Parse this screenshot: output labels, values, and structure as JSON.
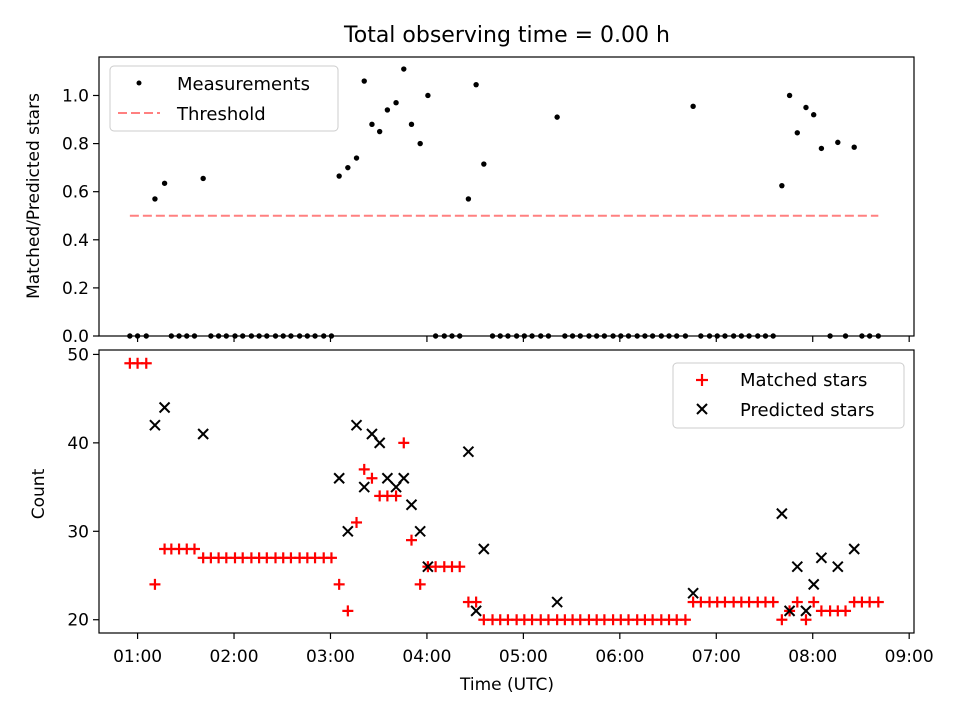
{
  "chart_data": [
    {
      "type": "scatter",
      "title": "Total observing time = 0.00 h",
      "xlabel": "",
      "ylabel": "Matched/Predicted stars",
      "xlim": [
        0.6,
        9.05
      ],
      "ylim": [
        0,
        1.16
      ],
      "yticks": [
        0.0,
        0.2,
        0.4,
        0.6,
        0.8,
        1.0
      ],
      "ytick_labels": [
        "0.0",
        "0.2",
        "0.4",
        "0.6",
        "0.8",
        "1.0"
      ],
      "xticks": [
        1,
        2,
        3,
        4,
        5,
        6,
        7,
        8,
        9
      ],
      "grid": false,
      "legend_position": "upper-left",
      "series": [
        {
          "name": "Measurements",
          "color": "#000000",
          "marker": "dot",
          "points": [
            [
              0.92,
              0
            ],
            [
              1.0,
              0
            ],
            [
              1.09,
              0
            ],
            [
              1.18,
              0.57
            ],
            [
              1.28,
              0.635
            ],
            [
              1.35,
              0
            ],
            [
              1.43,
              0
            ],
            [
              1.51,
              0
            ],
            [
              1.59,
              0
            ],
            [
              1.68,
              0.655
            ],
            [
              1.76,
              0
            ],
            [
              1.84,
              0
            ],
            [
              1.92,
              0
            ],
            [
              2.01,
              0
            ],
            [
              2.09,
              0
            ],
            [
              2.18,
              0
            ],
            [
              2.26,
              0
            ],
            [
              2.34,
              0
            ],
            [
              2.43,
              0
            ],
            [
              2.51,
              0
            ],
            [
              2.59,
              0
            ],
            [
              2.68,
              0
            ],
            [
              2.76,
              0
            ],
            [
              2.84,
              0
            ],
            [
              2.93,
              0
            ],
            [
              3.01,
              0
            ],
            [
              3.09,
              0.665
            ],
            [
              3.18,
              0.7
            ],
            [
              3.27,
              0.74
            ],
            [
              3.35,
              1.06
            ],
            [
              3.43,
              0.88
            ],
            [
              3.51,
              0.85
            ],
            [
              3.59,
              0.94
            ],
            [
              3.68,
              0.97
            ],
            [
              3.76,
              1.11
            ],
            [
              3.84,
              0.88
            ],
            [
              3.93,
              0.8
            ],
            [
              4.01,
              1.0
            ],
            [
              4.09,
              0
            ],
            [
              4.18,
              0
            ],
            [
              4.26,
              0
            ],
            [
              4.34,
              0
            ],
            [
              4.43,
              0.57
            ],
            [
              4.51,
              1.045
            ],
            [
              4.59,
              0.715
            ],
            [
              4.68,
              0
            ],
            [
              4.76,
              0
            ],
            [
              4.84,
              0
            ],
            [
              4.93,
              0
            ],
            [
              5.01,
              0
            ],
            [
              5.09,
              0
            ],
            [
              5.18,
              0
            ],
            [
              5.26,
              0
            ],
            [
              5.35,
              0.91
            ],
            [
              5.43,
              0
            ],
            [
              5.51,
              0
            ],
            [
              5.59,
              0
            ],
            [
              5.68,
              0
            ],
            [
              5.76,
              0
            ],
            [
              5.84,
              0
            ],
            [
              5.93,
              0
            ],
            [
              6.01,
              0
            ],
            [
              6.09,
              0
            ],
            [
              6.18,
              0
            ],
            [
              6.26,
              0
            ],
            [
              6.34,
              0
            ],
            [
              6.43,
              0
            ],
            [
              6.51,
              0
            ],
            [
              6.59,
              0
            ],
            [
              6.68,
              0
            ],
            [
              6.76,
              0.955
            ],
            [
              6.84,
              0
            ],
            [
              6.93,
              0
            ],
            [
              7.01,
              0
            ],
            [
              7.09,
              0
            ],
            [
              7.18,
              0
            ],
            [
              7.26,
              0
            ],
            [
              7.34,
              0
            ],
            [
              7.43,
              0
            ],
            [
              7.51,
              0
            ],
            [
              7.59,
              0
            ],
            [
              7.68,
              0.625
            ],
            [
              7.76,
              1.0
            ],
            [
              7.84,
              0.845
            ],
            [
              7.93,
              0.95
            ],
            [
              8.01,
              0.92
            ],
            [
              8.09,
              0.78
            ],
            [
              8.18,
              0
            ],
            [
              8.26,
              0.805
            ],
            [
              8.34,
              0
            ],
            [
              8.43,
              0.785
            ],
            [
              8.51,
              0
            ],
            [
              8.59,
              0
            ],
            [
              8.68,
              0
            ]
          ]
        },
        {
          "name": "Threshold",
          "color": "#ff8080",
          "style": "dashed",
          "points": [
            [
              0.92,
              0.5
            ],
            [
              8.68,
              0.5
            ]
          ]
        }
      ]
    },
    {
      "type": "scatter",
      "title": "",
      "xlabel": "Time (UTC)",
      "ylabel": "Count",
      "xlim": [
        0.6,
        9.05
      ],
      "ylim": [
        18.5,
        50.5
      ],
      "yticks": [
        20,
        30,
        40,
        50
      ],
      "ytick_labels": [
        "20",
        "30",
        "40",
        "50"
      ],
      "xticks": [
        1,
        2,
        3,
        4,
        5,
        6,
        7,
        8,
        9
      ],
      "xtick_labels": [
        "01:00",
        "02:00",
        "03:00",
        "04:00",
        "05:00",
        "06:00",
        "07:00",
        "08:00",
        "09:00"
      ],
      "grid": false,
      "legend_position": "upper-right",
      "series": [
        {
          "name": "Matched stars",
          "color": "#ff0000",
          "marker": "plus",
          "points": [
            [
              0.92,
              49
            ],
            [
              1.0,
              49
            ],
            [
              1.09,
              49
            ],
            [
              1.18,
              24
            ],
            [
              1.28,
              28
            ],
            [
              1.35,
              28
            ],
            [
              1.43,
              28
            ],
            [
              1.51,
              28
            ],
            [
              1.59,
              28
            ],
            [
              1.68,
              27
            ],
            [
              1.76,
              27
            ],
            [
              1.84,
              27
            ],
            [
              1.92,
              27
            ],
            [
              2.01,
              27
            ],
            [
              2.09,
              27
            ],
            [
              2.18,
              27
            ],
            [
              2.26,
              27
            ],
            [
              2.34,
              27
            ],
            [
              2.43,
              27
            ],
            [
              2.51,
              27
            ],
            [
              2.59,
              27
            ],
            [
              2.68,
              27
            ],
            [
              2.76,
              27
            ],
            [
              2.84,
              27
            ],
            [
              2.93,
              27
            ],
            [
              3.01,
              27
            ],
            [
              3.09,
              24
            ],
            [
              3.18,
              21
            ],
            [
              3.27,
              31
            ],
            [
              3.35,
              37
            ],
            [
              3.43,
              36
            ],
            [
              3.51,
              34
            ],
            [
              3.59,
              34
            ],
            [
              3.68,
              34
            ],
            [
              3.76,
              40
            ],
            [
              3.84,
              29
            ],
            [
              3.93,
              24
            ],
            [
              4.01,
              26
            ],
            [
              4.09,
              26
            ],
            [
              4.18,
              26
            ],
            [
              4.26,
              26
            ],
            [
              4.34,
              26
            ],
            [
              4.43,
              22
            ],
            [
              4.51,
              22
            ],
            [
              4.59,
              20
            ],
            [
              4.68,
              20
            ],
            [
              4.76,
              20
            ],
            [
              4.84,
              20
            ],
            [
              4.93,
              20
            ],
            [
              5.01,
              20
            ],
            [
              5.09,
              20
            ],
            [
              5.18,
              20
            ],
            [
              5.26,
              20
            ],
            [
              5.35,
              20
            ],
            [
              5.43,
              20
            ],
            [
              5.51,
              20
            ],
            [
              5.59,
              20
            ],
            [
              5.68,
              20
            ],
            [
              5.76,
              20
            ],
            [
              5.84,
              20
            ],
            [
              5.93,
              20
            ],
            [
              6.01,
              20
            ],
            [
              6.09,
              20
            ],
            [
              6.18,
              20
            ],
            [
              6.26,
              20
            ],
            [
              6.34,
              20
            ],
            [
              6.43,
              20
            ],
            [
              6.51,
              20
            ],
            [
              6.59,
              20
            ],
            [
              6.68,
              20
            ],
            [
              6.76,
              22
            ],
            [
              6.84,
              22
            ],
            [
              6.93,
              22
            ],
            [
              7.01,
              22
            ],
            [
              7.09,
              22
            ],
            [
              7.18,
              22
            ],
            [
              7.26,
              22
            ],
            [
              7.34,
              22
            ],
            [
              7.43,
              22
            ],
            [
              7.51,
              22
            ],
            [
              7.59,
              22
            ],
            [
              7.68,
              20
            ],
            [
              7.76,
              21
            ],
            [
              7.84,
              22
            ],
            [
              7.93,
              20
            ],
            [
              8.01,
              22
            ],
            [
              8.09,
              21
            ],
            [
              8.18,
              21
            ],
            [
              8.26,
              21
            ],
            [
              8.34,
              21
            ],
            [
              8.43,
              22
            ],
            [
              8.51,
              22
            ],
            [
              8.59,
              22
            ],
            [
              8.68,
              22
            ]
          ]
        },
        {
          "name": "Predicted stars",
          "color": "#000000",
          "marker": "x",
          "points": [
            [
              1.18,
              42
            ],
            [
              1.28,
              44
            ],
            [
              1.68,
              41
            ],
            [
              3.09,
              36
            ],
            [
              3.18,
              30
            ],
            [
              3.27,
              42
            ],
            [
              3.35,
              35
            ],
            [
              3.43,
              41
            ],
            [
              3.51,
              40
            ],
            [
              3.59,
              36
            ],
            [
              3.68,
              35
            ],
            [
              3.76,
              36
            ],
            [
              3.84,
              33
            ],
            [
              3.93,
              30
            ],
            [
              4.01,
              26
            ],
            [
              4.43,
              39
            ],
            [
              4.51,
              21
            ],
            [
              4.59,
              28
            ],
            [
              5.35,
              22
            ],
            [
              6.76,
              23
            ],
            [
              7.68,
              32
            ],
            [
              7.76,
              21
            ],
            [
              7.84,
              26
            ],
            [
              7.93,
              21
            ],
            [
              8.01,
              24
            ],
            [
              8.09,
              27
            ],
            [
              8.26,
              26
            ],
            [
              8.43,
              28
            ]
          ]
        }
      ]
    }
  ]
}
